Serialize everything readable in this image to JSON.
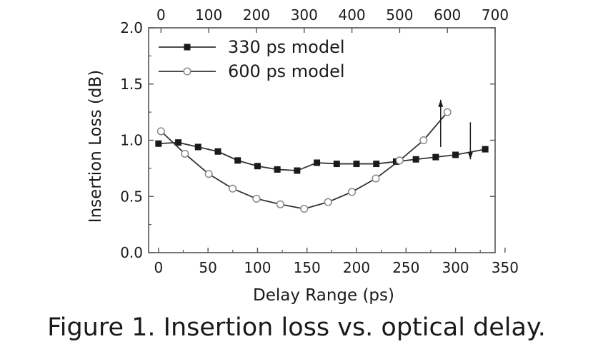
{
  "chart_data": {
    "type": "line",
    "caption": "Figure 1. Insertion loss vs. optical delay.",
    "xlabel": "Delay Range (ps)",
    "ylabel": "Insertion Loss (dB)",
    "xlim": [
      -10,
      340
    ],
    "ylim": [
      0,
      2.0
    ],
    "x_ticks": [
      "0",
      "50",
      "100",
      "150",
      "200",
      "250",
      "300",
      "350"
    ],
    "y_ticks": [
      "0.0",
      "0.5",
      "1.0",
      "1.5",
      "2.0"
    ],
    "x2_ticks": [
      "0",
      "100",
      "200",
      "300",
      "400",
      "500",
      "600",
      "700"
    ],
    "x2_range": [
      -26,
      700
    ],
    "grid": false,
    "legend_position": "top-left",
    "series": [
      {
        "name": "330 ps model",
        "axis": "bottom",
        "marker": "filled-square",
        "x": [
          0,
          20,
          40,
          60,
          80,
          100,
          120,
          140,
          160,
          180,
          200,
          220,
          240,
          260,
          280,
          300,
          330
        ],
        "y": [
          0.97,
          0.98,
          0.94,
          0.9,
          0.82,
          0.77,
          0.74,
          0.73,
          0.8,
          0.79,
          0.79,
          0.79,
          0.81,
          0.83,
          0.85,
          0.87,
          0.92
        ]
      },
      {
        "name": "600 ps model",
        "axis": "top",
        "marker": "open-circle",
        "x": [
          0,
          50,
          100,
          150,
          200,
          250,
          300,
          350,
          400,
          450,
          500,
          550,
          600
        ],
        "y": [
          1.08,
          0.88,
          0.7,
          0.57,
          0.48,
          0.43,
          0.39,
          0.45,
          0.54,
          0.66,
          0.82,
          1.0,
          1.25
        ]
      }
    ],
    "annotations": [
      {
        "type": "arrow",
        "direction": "up",
        "refers_to": "top axis",
        "x": 285,
        "y_from": 0.94,
        "y_to": 1.36
      },
      {
        "type": "arrow",
        "direction": "down",
        "refers_to": "bottom axis",
        "x": 315,
        "y_from": 1.16,
        "y_to": 0.83
      }
    ]
  }
}
